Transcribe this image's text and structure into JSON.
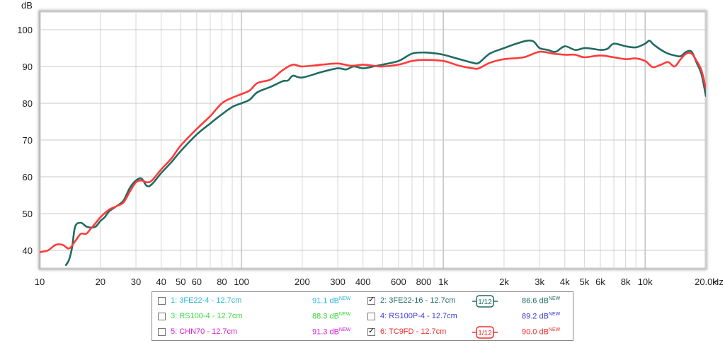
{
  "chart_data": {
    "type": "line",
    "xscale": "log",
    "xlim": [
      10,
      20000
    ],
    "ylim": [
      35,
      105
    ],
    "ylabel": "dB",
    "xlabel": "Hz",
    "grid": true,
    "x_ticks": [
      10,
      20,
      30,
      40,
      50,
      60,
      80,
      100,
      200,
      300,
      400,
      600,
      800,
      1000,
      2000,
      3000,
      4000,
      5000,
      6000,
      8000,
      10000,
      20000
    ],
    "x_tick_labels": [
      "10",
      "20",
      "30",
      "40",
      "50",
      "60",
      "80",
      "100",
      "200",
      "300",
      "400",
      "600",
      "800",
      "1k",
      "2k",
      "3k",
      "4k",
      "5k",
      "6k",
      "8k",
      "10k",
      "20.0k"
    ],
    "y_ticks": [
      40,
      50,
      60,
      70,
      80,
      90,
      100
    ],
    "y_tick_labels": [
      "40",
      "50",
      "60",
      "70",
      "80",
      "90",
      "100"
    ],
    "series": [
      {
        "name": "2: 3FE22-16 - 12.7cm",
        "color": "#1f6b62",
        "x": [
          13.5,
          14,
          14.5,
          15,
          16,
          17,
          18,
          19,
          20,
          21,
          22,
          24,
          26,
          28,
          30,
          32,
          34,
          36,
          40,
          45,
          50,
          60,
          70,
          80,
          90,
          100,
          110,
          120,
          140,
          160,
          170,
          180,
          200,
          250,
          300,
          330,
          360,
          400,
          450,
          500,
          600,
          700,
          800,
          900,
          1000,
          1200,
          1400,
          1500,
          1700,
          2000,
          2300,
          2600,
          2800,
          3000,
          3300,
          3600,
          4000,
          4500,
          5000,
          5500,
          6000,
          6500,
          7000,
          8000,
          9000,
          10000,
          10500,
          11000,
          12000,
          13000,
          14000,
          15000,
          16000,
          17000,
          18000,
          19000,
          20000
        ],
        "y": [
          36,
          37.5,
          41,
          46.5,
          47.5,
          46.5,
          46.2,
          46.5,
          48,
          49,
          50.5,
          52,
          53.5,
          57,
          59,
          59.5,
          57.5,
          58,
          61,
          64,
          67,
          71.5,
          74.5,
          77,
          79,
          80,
          81,
          83,
          84.5,
          86,
          86.2,
          87.5,
          87,
          88.5,
          89.5,
          89.2,
          90,
          89.5,
          90,
          90.5,
          91.5,
          93.5,
          93.8,
          93.6,
          93.2,
          92,
          91,
          91,
          93.5,
          95,
          96.2,
          97,
          96.8,
          95,
          94.5,
          94,
          95.5,
          94.5,
          95,
          94.8,
          94.5,
          94.8,
          96.2,
          95.5,
          95.2,
          96.2,
          97,
          96,
          94.5,
          93.5,
          93,
          92.8,
          94,
          94,
          91,
          88,
          82
        ]
      },
      {
        "name": "6: TC9FD - 12.7cm",
        "color": "#ff3b3b",
        "x": [
          10,
          11,
          12,
          13,
          14,
          15,
          16,
          17,
          18,
          19,
          20,
          22,
          24,
          26,
          28,
          30,
          32,
          34,
          36,
          40,
          45,
          50,
          60,
          70,
          80,
          90,
          100,
          110,
          120,
          140,
          160,
          180,
          200,
          250,
          300,
          350,
          400,
          450,
          500,
          600,
          700,
          800,
          1000,
          1200,
          1400,
          1500,
          1700,
          2000,
          2500,
          3000,
          3500,
          4000,
          4500,
          5000,
          6000,
          7000,
          8000,
          9000,
          10000,
          10500,
          11000,
          12000,
          13000,
          14000,
          15000,
          16000,
          17000,
          18000,
          19000,
          20000
        ],
        "y": [
          39.5,
          40,
          41.5,
          41.5,
          40.5,
          42.5,
          44.5,
          44.5,
          46,
          47.5,
          49,
          51,
          52,
          53,
          56,
          58.5,
          59,
          58.5,
          59,
          62,
          65,
          68.5,
          73,
          76.5,
          80,
          81.5,
          82.5,
          83.5,
          85.5,
          86.5,
          89,
          90.5,
          90,
          90.5,
          90.8,
          90.2,
          90.5,
          90.2,
          90,
          90.5,
          91.5,
          91.8,
          91.5,
          90.2,
          89.5,
          89.5,
          91,
          92,
          92.5,
          94,
          93.5,
          93.2,
          93.2,
          92.5,
          93,
          92.5,
          92,
          92.2,
          91.5,
          90.5,
          89.8,
          90.5,
          91.2,
          90,
          92,
          93.5,
          93.5,
          91.5,
          89,
          84
        ]
      }
    ]
  },
  "legend": {
    "items": [
      {
        "label": "1: 3FE22-4 - 12.7cm",
        "value": "91.1 dB",
        "sup": "NEW",
        "checked": false,
        "color": "#2bb7d6",
        "value_color": "#2bb7d6"
      },
      {
        "label": "2: 3FE22-16 - 12.7cm",
        "value": "86.6 dB",
        "sup": "NEW",
        "checked": true,
        "color": "#1f6b62",
        "value_color": "#1f6b62",
        "badge": "1/12"
      },
      {
        "label": "3: RS100-4 - 12.7cm",
        "value": "88.3 dB",
        "sup": "NEW",
        "checked": false,
        "color": "#3ad63a",
        "value_color": "#3ad63a"
      },
      {
        "label": "4: RS100P-4 - 12.7cm",
        "value": "89.2 dB",
        "sup": "NEW",
        "checked": false,
        "color": "#3c3cd6",
        "value_color": "#3c3cd6"
      },
      {
        "label": "5: CHN70 - 12.7cm",
        "value": "91.3 dB",
        "sup": "NEW",
        "checked": false,
        "color": "#d020d0",
        "value_color": "#d020d0"
      },
      {
        "label": "6: TC9FD - 12.7cm",
        "value": "90.0 dB",
        "sup": "NEW",
        "checked": true,
        "color": "#ee2b2b",
        "value_color": "#ee2b2b",
        "badge": "1/12"
      }
    ]
  }
}
